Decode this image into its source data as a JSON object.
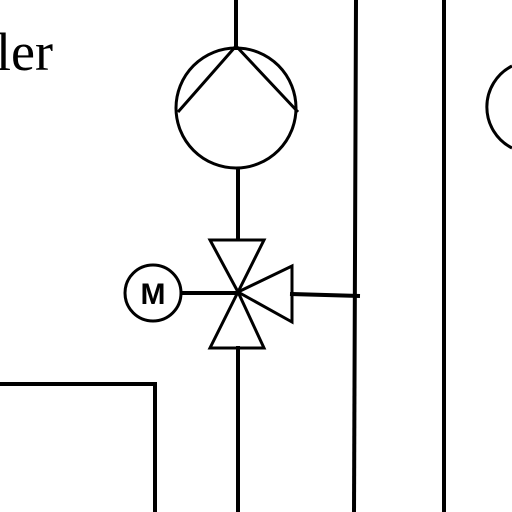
{
  "diagram": {
    "partial_label": "ler",
    "motor_label": "M"
  }
}
